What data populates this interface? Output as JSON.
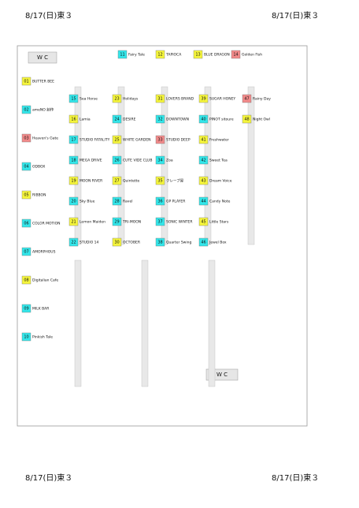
{
  "headers": [
    "8/17(日)東３",
    "8/17(日)東３",
    "8/17(日)東３",
    "8/17(日)東３"
  ],
  "restrooms": [
    "W C",
    "W C"
  ],
  "booths": [
    {
      "code": "01",
      "label": "BUTTER BEE",
      "color": "#f5f53c"
    },
    {
      "code": "02",
      "label": "ameNO 創作",
      "color": "#33e6ea"
    },
    {
      "code": "03",
      "label": "Heaven's Gate",
      "color": "#f28a8a"
    },
    {
      "code": "04",
      "label": "ODBOX",
      "color": "#33e6ea"
    },
    {
      "code": "05",
      "label": "RIBBON",
      "color": "#f5f53c"
    },
    {
      "code": "06",
      "label": "COLOR MOTION",
      "color": "#33e6ea"
    },
    {
      "code": "07",
      "label": "AMORPHOUS",
      "color": "#33e6ea"
    },
    {
      "code": "08",
      "label": "Digitalian Cafe",
      "color": "#f5f53c"
    },
    {
      "code": "09",
      "label": "MILK BAR",
      "color": "#33e6ea"
    },
    {
      "code": "10",
      "label": "Pinkish Tale",
      "color": "#33e6ea"
    },
    {
      "code": "11",
      "label": "Fairy Tale",
      "color": "#33e6ea"
    },
    {
      "code": "12",
      "label": "TAPIOCA",
      "color": "#f5f53c"
    },
    {
      "code": "13",
      "label": "BLUE DRAGON",
      "color": "#f5f53c"
    },
    {
      "code": "14",
      "label": "Golden Fish",
      "color": "#f28a8a"
    },
    {
      "code": "15",
      "label": "Sea Horse",
      "color": "#33e6ea"
    },
    {
      "code": "16",
      "label": "Lamia",
      "color": "#f5f53c"
    },
    {
      "code": "17",
      "label": "STUDIO FATALITY",
      "color": "#33e6ea"
    },
    {
      "code": "18",
      "label": "MEGA DRIVE",
      "color": "#33e6ea"
    },
    {
      "code": "19",
      "label": "MOON RIVER",
      "color": "#f5f53c"
    },
    {
      "code": "20",
      "label": "Sky Blue",
      "color": "#33e6ea"
    },
    {
      "code": "21",
      "label": "Lemon Maiden",
      "color": "#f5f53c"
    },
    {
      "code": "22",
      "label": "STUDIO 14",
      "color": "#33e6ea"
    },
    {
      "code": "23",
      "label": "Holidays",
      "color": "#f5f53c"
    },
    {
      "code": "24",
      "label": "DESIRE",
      "color": "#33e6ea"
    },
    {
      "code": "25",
      "label": "WHITE GARDEN",
      "color": "#f5f53c"
    },
    {
      "code": "26",
      "label": "CUTE VIDE CLUB",
      "color": "#33e6ea"
    },
    {
      "code": "27",
      "label": "Quintette",
      "color": "#f5f53c"
    },
    {
      "code": "28",
      "label": "Ravel",
      "color": "#33e6ea"
    },
    {
      "code": "29",
      "label": "TRI-MOON",
      "color": "#33e6ea"
    },
    {
      "code": "30",
      "label": "OCTOBER",
      "color": "#f5f53c"
    },
    {
      "code": "31",
      "label": "LOVERS BRAND",
      "color": "#f5f53c"
    },
    {
      "code": "32",
      "label": "DOWNTOWN",
      "color": "#33e6ea"
    },
    {
      "code": "33",
      "label": "STUDIO DEEP",
      "color": "#f28a8a"
    },
    {
      "code": "34",
      "label": "Zoa",
      "color": "#33e6ea"
    },
    {
      "code": "35",
      "label": "クレープ屋",
      "color": "#f5f53c"
    },
    {
      "code": "36",
      "label": "GP PLAYER",
      "color": "#33e6ea"
    },
    {
      "code": "37",
      "label": "SONIC WINTER",
      "color": "#33e6ea"
    },
    {
      "code": "38",
      "label": "Quarter Swing",
      "color": "#33e6ea"
    },
    {
      "code": "39",
      "label": "SUGAR HONEY",
      "color": "#f5f53c"
    },
    {
      "code": "40",
      "label": "PINOT sitoure",
      "color": "#33e6ea"
    },
    {
      "code": "41",
      "label": "Freshwater",
      "color": "#f5f53c"
    },
    {
      "code": "42",
      "label": "Sweet Tea",
      "color": "#33e6ea"
    },
    {
      "code": "43",
      "label": "Dream Voice",
      "color": "#f5f53c"
    },
    {
      "code": "44",
      "label": "Candy Note",
      "color": "#33e6ea"
    },
    {
      "code": "45",
      "label": "Little Stars",
      "color": "#f5f53c"
    },
    {
      "code": "46",
      "label": "Jewel Box",
      "color": "#33e6ea"
    },
    {
      "code": "47",
      "label": "Rainy Day",
      "color": "#f28a8a"
    },
    {
      "code": "48",
      "label": "Night Owl",
      "color": "#f5f53c"
    }
  ]
}
